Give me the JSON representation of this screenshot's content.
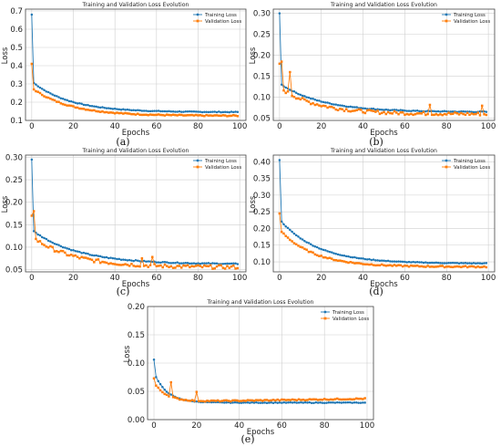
{
  "colors": {
    "training": "#1f77b4",
    "validation": "#ff7f0e"
  },
  "chart_data": [
    {
      "type": "line",
      "title": "Training and Validation Loss Evolution",
      "xlabel": "Epochs",
      "ylabel": "Loss",
      "xlim": [
        -3,
        103
      ],
      "ylim": [
        0.1,
        0.71
      ],
      "xticks": [
        "0",
        "20",
        "40",
        "60",
        "80",
        "100"
      ],
      "yticks": [
        "0.1",
        "0.2",
        "0.3",
        "0.4",
        "0.5",
        "0.6",
        "0.7"
      ],
      "grid": true,
      "legend": "top-right",
      "caption": "(a)",
      "series": [
        {
          "name": "Training Loss",
          "color": "#1f77b4",
          "marker": "circle",
          "start": 0.68,
          "p2": 0.305,
          "end": 0.145,
          "tau": 18,
          "noise": 0.002,
          "spikes": []
        },
        {
          "name": "Validation Loss",
          "color": "#ff7f0e",
          "marker": "square",
          "start": 0.41,
          "p2": 0.27,
          "end": 0.125,
          "tau": 18,
          "noise": 0.003,
          "spikes": []
        }
      ]
    },
    {
      "type": "line",
      "title": "Training and Validation Loss Evolution",
      "xlabel": "Epochs",
      "ylabel": "Loss",
      "xlim": [
        -3,
        103
      ],
      "ylim": [
        0.045,
        0.31
      ],
      "xticks": [
        "0",
        "20",
        "40",
        "60",
        "80",
        "100"
      ],
      "yticks": [
        "0.05",
        "0.10",
        "0.15",
        "0.20",
        "0.25",
        "0.30"
      ],
      "grid": true,
      "legend": "top-right",
      "caption": "(b)",
      "series": [
        {
          "name": "Training Loss",
          "color": "#1f77b4",
          "marker": "circle",
          "start": 0.3,
          "p2": 0.13,
          "end": 0.065,
          "tau": 20,
          "noise": 0.001,
          "spikes": []
        },
        {
          "name": "Validation Loss",
          "color": "#ff7f0e",
          "marker": "square",
          "start": 0.18,
          "p2": 0.12,
          "end": 0.06,
          "tau": 18,
          "noise": 0.004,
          "spikes": [
            [
              1,
              0.185
            ],
            [
              5,
              0.16
            ],
            [
              72,
              0.082
            ],
            [
              97,
              0.08
            ]
          ]
        }
      ]
    },
    {
      "type": "line",
      "title": "Training and Validation Loss Evolution",
      "xlabel": "Epochs",
      "ylabel": "Loss",
      "xlim": [
        -3,
        103
      ],
      "ylim": [
        0.045,
        0.305
      ],
      "xticks": [
        "0",
        "20",
        "40",
        "60",
        "80",
        "100"
      ],
      "yticks": [
        "0.05",
        "0.10",
        "0.15",
        "0.20",
        "0.25",
        "0.30"
      ],
      "grid": true,
      "legend": "top-right",
      "caption": "(c)",
      "series": [
        {
          "name": "Training Loss",
          "color": "#1f77b4",
          "marker": "circle",
          "start": 0.295,
          "p2": 0.135,
          "end": 0.062,
          "tau": 22,
          "noise": 0.001,
          "spikes": []
        },
        {
          "name": "Validation Loss",
          "color": "#ff7f0e",
          "marker": "square",
          "start": 0.17,
          "p2": 0.12,
          "end": 0.055,
          "tau": 20,
          "noise": 0.004,
          "spikes": [
            [
              1,
              0.18
            ],
            [
              53,
              0.075
            ],
            [
              58,
              0.078
            ]
          ]
        }
      ]
    },
    {
      "type": "line",
      "title": "Training and Validation Loss Evolution",
      "xlabel": "Epochs",
      "ylabel": "Loss",
      "xlim": [
        -3,
        103
      ],
      "ylim": [
        0.07,
        0.42
      ],
      "xticks": [
        "0",
        "20",
        "40",
        "60",
        "80",
        "100"
      ],
      "yticks": [
        "0.10",
        "0.15",
        "0.20",
        "0.25",
        "0.30",
        "0.35",
        "0.40"
      ],
      "grid": true,
      "legend": "top-right",
      "caption": "(d)",
      "series": [
        {
          "name": "Training Loss",
          "color": "#1f77b4",
          "marker": "circle",
          "start": 0.405,
          "p2": 0.22,
          "end": 0.095,
          "tau": 18,
          "noise": 0.001,
          "spikes": []
        },
        {
          "name": "Validation Loss",
          "color": "#ff7f0e",
          "marker": "square",
          "start": 0.245,
          "p2": 0.19,
          "end": 0.085,
          "tau": 16,
          "noise": 0.002,
          "spikes": []
        }
      ]
    },
    {
      "type": "line",
      "title": "Training and Validation Loss Evolution",
      "xlabel": "Epochs",
      "ylabel": "Loss",
      "xlim": [
        -3,
        103
      ],
      "ylim": [
        0.0,
        0.2
      ],
      "xticks": [
        "0",
        "20",
        "40",
        "60",
        "80",
        "100"
      ],
      "yticks": [
        "0.00",
        "0.05",
        "0.10",
        "0.15",
        "0.20"
      ],
      "grid": true,
      "legend": "top-right",
      "caption": "(e)",
      "series": [
        {
          "name": "Training Loss",
          "color": "#1f77b4",
          "marker": "circle",
          "start": 0.106,
          "p2": 0.075,
          "end": 0.03,
          "tau": 6,
          "noise": 0.0005,
          "spikes": []
        },
        {
          "name": "Validation Loss",
          "color": "#ff7f0e",
          "marker": "square",
          "start": 0.073,
          "p2": 0.06,
          "end": 0.031,
          "tau": 6,
          "noise": 0.001,
          "drift": 0.006,
          "spikes": [
            [
              8,
              0.066
            ],
            [
              20,
              0.049
            ]
          ]
        }
      ]
    }
  ]
}
